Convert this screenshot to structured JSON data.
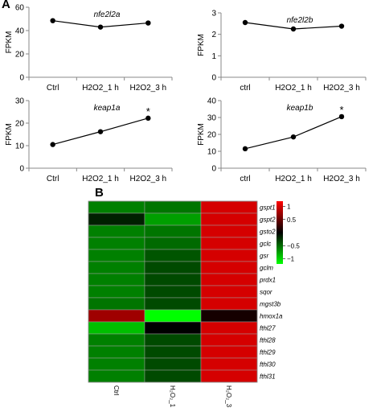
{
  "panels": {
    "a": "A",
    "b": "B"
  },
  "chart_data": [
    {
      "type": "line",
      "title": "nfe2l2a",
      "ylabel": "FPKM",
      "categories": [
        "Ctrl",
        "H2O2_1 h",
        "H2O2_3 h"
      ],
      "values": [
        48.5,
        43,
        46.5
      ],
      "ylim": [
        0,
        60
      ],
      "yticks": [
        0,
        20,
        40,
        60
      ],
      "annotations": [
        "",
        "",
        ""
      ]
    },
    {
      "type": "line",
      "title": "nfe2l2b",
      "ylabel": "FPKM",
      "categories": [
        "ctrl",
        "H2O2_1 h",
        "H2O2_3 h"
      ],
      "values": [
        2.55,
        2.25,
        2.38
      ],
      "ylim": [
        0,
        3
      ],
      "yticks": [
        0,
        1,
        2,
        3
      ],
      "annotations": [
        "",
        "",
        ""
      ]
    },
    {
      "type": "line",
      "title": "keap1a",
      "ylabel": "FPKM",
      "categories": [
        "Ctrl",
        "H2O2_1 h",
        "H2O2_3 h"
      ],
      "values": [
        10.5,
        16.2,
        22.2
      ],
      "ylim": [
        0,
        30
      ],
      "yticks": [
        0,
        10,
        20,
        30
      ],
      "annotations": [
        "",
        "",
        "*"
      ]
    },
    {
      "type": "line",
      "title": "keap1b",
      "ylabel": "FPKM",
      "categories": [
        "ctrl",
        "H2O2_1 h",
        "H2O2_3 h"
      ],
      "values": [
        11.5,
        18.5,
        30.5
      ],
      "ylim": [
        0,
        40
      ],
      "yticks": [
        0,
        10,
        20,
        30,
        40
      ],
      "annotations": [
        "",
        "",
        "*"
      ]
    },
    {
      "type": "heatmap",
      "rows": [
        "gspt1",
        "gspt2",
        "gsto2",
        "gclc",
        "gsr",
        "gclm",
        "prdx1",
        "sqor",
        "mgst3b",
        "hmox1a",
        "fthl27",
        "fthl28",
        "fthl29",
        "fthl30",
        "fthl31"
      ],
      "columns": [
        "Ctrl",
        "H₂O₂_1 h",
        "H₂O₂_3 h"
      ],
      "values": [
        [
          -0.6,
          -0.55,
          1.0
        ],
        [
          -0.15,
          -0.75,
          1.0
        ],
        [
          -0.6,
          -0.55,
          1.0
        ],
        [
          -0.6,
          -0.5,
          1.0
        ],
        [
          -0.6,
          -0.4,
          1.0
        ],
        [
          -0.6,
          -0.35,
          1.0
        ],
        [
          -0.6,
          -0.35,
          1.0
        ],
        [
          -0.6,
          -0.35,
          1.0
        ],
        [
          -0.55,
          -0.35,
          1.0
        ],
        [
          0.75,
          -1.2,
          0.1
        ],
        [
          -0.9,
          0.0,
          1.0
        ],
        [
          -0.6,
          -0.35,
          1.0
        ],
        [
          -0.6,
          -0.35,
          1.0
        ],
        [
          -0.6,
          -0.35,
          1.0
        ],
        [
          -0.6,
          -0.35,
          1.0
        ]
      ],
      "colorbar": {
        "range": [
          -1.2,
          1.2
        ],
        "ticks": [
          1,
          0.5,
          -0.5,
          -1
        ],
        "tick_labels": [
          "1",
          "0.5",
          "−0.5",
          "−1"
        ]
      },
      "colors": {
        "low": "#00ff00",
        "mid": "#000000",
        "high": "#ff0000"
      }
    }
  ]
}
